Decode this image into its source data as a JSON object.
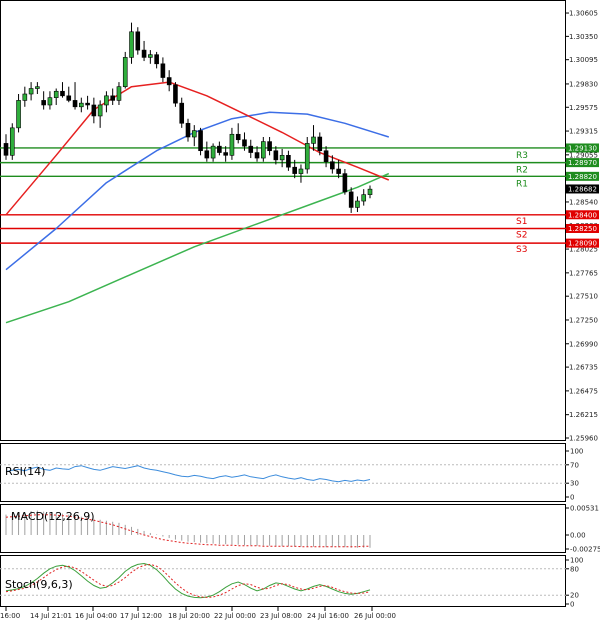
{
  "chart_data": {
    "type": "candlestick",
    "main": {
      "ylim": [
        1.2596,
        1.3066
      ],
      "price_ticks": [
        "1.30605",
        "1.30350",
        "1.30095",
        "1.29830",
        "1.29575",
        "1.29315",
        "1.29055",
        "1.28800",
        "1.28540",
        "1.28280",
        "1.28025",
        "1.27765",
        "1.27510",
        "1.27250",
        "1.26990",
        "1.26735",
        "1.26475",
        "1.26215",
        "1.25960"
      ],
      "x_labels": [
        "16:00",
        "14 Jul 21:01",
        "16 Jul 04:00",
        "17 Jul 12:00",
        "18 Jul 20:00",
        "22 Jul 00:00",
        "23 Jul 08:00",
        "24 Jul 16:00",
        "26 Jul 00:00"
      ],
      "candles": [
        {
          "o": 1.2918,
          "h": 1.2928,
          "l": 1.29,
          "c": 1.2905
        },
        {
          "o": 1.2905,
          "h": 1.294,
          "l": 1.29,
          "c": 1.2935
        },
        {
          "o": 1.2935,
          "h": 1.2972,
          "l": 1.293,
          "c": 1.2965
        },
        {
          "o": 1.2965,
          "h": 1.298,
          "l": 1.2958,
          "c": 1.2972
        },
        {
          "o": 1.2972,
          "h": 1.2985,
          "l": 1.2965,
          "c": 1.2978
        },
        {
          "o": 1.2978,
          "h": 1.2985,
          "l": 1.2972,
          "c": 1.298
        },
        {
          "o": 1.2965,
          "h": 1.2975,
          "l": 1.2955,
          "c": 1.296
        },
        {
          "o": 1.296,
          "h": 1.2975,
          "l": 1.2955,
          "c": 1.2968
        },
        {
          "o": 1.2968,
          "h": 1.2978,
          "l": 1.296,
          "c": 1.2975
        },
        {
          "o": 1.2975,
          "h": 1.2985,
          "l": 1.2968,
          "c": 1.297
        },
        {
          "o": 1.297,
          "h": 1.298,
          "l": 1.2963,
          "c": 1.2965
        },
        {
          "o": 1.2965,
          "h": 1.2985,
          "l": 1.2955,
          "c": 1.2958
        },
        {
          "o": 1.2958,
          "h": 1.2968,
          "l": 1.2952,
          "c": 1.2962
        },
        {
          "o": 1.2962,
          "h": 1.297,
          "l": 1.2955,
          "c": 1.296
        },
        {
          "o": 1.296,
          "h": 1.2968,
          "l": 1.294,
          "c": 1.2948
        },
        {
          "o": 1.2948,
          "h": 1.2965,
          "l": 1.2935,
          "c": 1.296
        },
        {
          "o": 1.296,
          "h": 1.2975,
          "l": 1.2952,
          "c": 1.297
        },
        {
          "o": 1.297,
          "h": 1.2978,
          "l": 1.296,
          "c": 1.2965
        },
        {
          "o": 1.2965,
          "h": 1.2985,
          "l": 1.296,
          "c": 1.298
        },
        {
          "o": 1.298,
          "h": 1.3018,
          "l": 1.2978,
          "c": 1.3012
        },
        {
          "o": 1.3012,
          "h": 1.305,
          "l": 1.3005,
          "c": 1.304
        },
        {
          "o": 1.304,
          "h": 1.3045,
          "l": 1.3015,
          "c": 1.302
        },
        {
          "o": 1.302,
          "h": 1.303,
          "l": 1.3008,
          "c": 1.3012
        },
        {
          "o": 1.3012,
          "h": 1.302,
          "l": 1.3005,
          "c": 1.3015
        },
        {
          "o": 1.3015,
          "h": 1.3018,
          "l": 1.3,
          "c": 1.3005
        },
        {
          "o": 1.3005,
          "h": 1.3012,
          "l": 1.2985,
          "c": 1.299
        },
        {
          "o": 1.299,
          "h": 1.2998,
          "l": 1.2975,
          "c": 1.2982
        },
        {
          "o": 1.2982,
          "h": 1.2985,
          "l": 1.2958,
          "c": 1.2962
        },
        {
          "o": 1.2962,
          "h": 1.2968,
          "l": 1.2935,
          "c": 1.294
        },
        {
          "o": 1.294,
          "h": 1.2945,
          "l": 1.292,
          "c": 1.2925
        },
        {
          "o": 1.2925,
          "h": 1.2938,
          "l": 1.2915,
          "c": 1.2932
        },
        {
          "o": 1.2932,
          "h": 1.2935,
          "l": 1.2905,
          "c": 1.291
        },
        {
          "o": 1.291,
          "h": 1.292,
          "l": 1.2898,
          "c": 1.2902
        },
        {
          "o": 1.2902,
          "h": 1.2918,
          "l": 1.2898,
          "c": 1.2915
        },
        {
          "o": 1.2915,
          "h": 1.292,
          "l": 1.2905,
          "c": 1.2908
        },
        {
          "o": 1.2908,
          "h": 1.2915,
          "l": 1.2898,
          "c": 1.2905
        },
        {
          "o": 1.2905,
          "h": 1.2935,
          "l": 1.29,
          "c": 1.2928
        },
        {
          "o": 1.2928,
          "h": 1.294,
          "l": 1.2918,
          "c": 1.2922
        },
        {
          "o": 1.2922,
          "h": 1.293,
          "l": 1.291,
          "c": 1.2915
        },
        {
          "o": 1.2915,
          "h": 1.2922,
          "l": 1.2902,
          "c": 1.2908
        },
        {
          "o": 1.2908,
          "h": 1.2915,
          "l": 1.2898,
          "c": 1.2902
        },
        {
          "o": 1.2902,
          "h": 1.2925,
          "l": 1.2898,
          "c": 1.292
        },
        {
          "o": 1.292,
          "h": 1.2925,
          "l": 1.2905,
          "c": 1.291
        },
        {
          "o": 1.291,
          "h": 1.2915,
          "l": 1.2895,
          "c": 1.29
        },
        {
          "o": 1.29,
          "h": 1.2912,
          "l": 1.2892,
          "c": 1.2905
        },
        {
          "o": 1.2905,
          "h": 1.291,
          "l": 1.2888,
          "c": 1.2892
        },
        {
          "o": 1.2892,
          "h": 1.29,
          "l": 1.288,
          "c": 1.2885
        },
        {
          "o": 1.2885,
          "h": 1.2895,
          "l": 1.2875,
          "c": 1.289
        },
        {
          "o": 1.289,
          "h": 1.2925,
          "l": 1.2885,
          "c": 1.2918
        },
        {
          "o": 1.2918,
          "h": 1.2938,
          "l": 1.291,
          "c": 1.2925
        },
        {
          "o": 1.2925,
          "h": 1.293,
          "l": 1.2905,
          "c": 1.291
        },
        {
          "o": 1.291,
          "h": 1.2915,
          "l": 1.2892,
          "c": 1.2898
        },
        {
          "o": 1.2898,
          "h": 1.2905,
          "l": 1.2885,
          "c": 1.289
        },
        {
          "o": 1.289,
          "h": 1.29,
          "l": 1.288,
          "c": 1.2885
        },
        {
          "o": 1.2885,
          "h": 1.289,
          "l": 1.2862,
          "c": 1.2865
        },
        {
          "o": 1.2865,
          "h": 1.287,
          "l": 1.2842,
          "c": 1.2848
        },
        {
          "o": 1.2848,
          "h": 1.286,
          "l": 1.2843,
          "c": 1.2855
        },
        {
          "o": 1.2855,
          "h": 1.2868,
          "l": 1.285,
          "c": 1.2862
        },
        {
          "o": 1.2862,
          "h": 1.2872,
          "l": 1.2858,
          "c": 1.2868
        }
      ],
      "ma_red": [
        [
          0,
          1.284
        ],
        [
          8,
          1.2905
        ],
        [
          14,
          1.2955
        ],
        [
          20,
          1.298
        ],
        [
          26,
          1.2985
        ],
        [
          32,
          1.297
        ],
        [
          38,
          1.295
        ],
        [
          44,
          1.293
        ],
        [
          50,
          1.2908
        ],
        [
          56,
          1.2892
        ],
        [
          61,
          1.2878
        ]
      ],
      "ma_blue": [
        [
          0,
          1.278
        ],
        [
          8,
          1.2825
        ],
        [
          16,
          1.2875
        ],
        [
          24,
          1.291
        ],
        [
          30,
          1.293
        ],
        [
          36,
          1.2945
        ],
        [
          42,
          1.2952
        ],
        [
          48,
          1.295
        ],
        [
          54,
          1.294
        ],
        [
          61,
          1.2925
        ]
      ],
      "ma_green": [
        [
          0,
          1.2722
        ],
        [
          10,
          1.2745
        ],
        [
          20,
          1.2775
        ],
        [
          30,
          1.2805
        ],
        [
          40,
          1.283
        ],
        [
          50,
          1.2855
        ],
        [
          56,
          1.287
        ],
        [
          61,
          1.2885
        ]
      ],
      "levels": [
        {
          "name": "R3",
          "price": "1.29130",
          "color": "#1e8c1e"
        },
        {
          "name": "R2",
          "price": "1.28970",
          "color": "#1e8c1e"
        },
        {
          "name": "R1",
          "price": "1.28820",
          "color": "#1e8c1e"
        },
        {
          "name": "S1",
          "price": "1.28400",
          "color": "#e00000"
        },
        {
          "name": "S2",
          "price": "1.28250",
          "color": "#e00000"
        },
        {
          "name": "S3",
          "price": "1.28090",
          "color": "#e00000"
        }
      ],
      "current_price": "1.28682"
    },
    "rsi": {
      "label": "RSI(14)",
      "ticks": [
        "100",
        "70",
        "30",
        "0"
      ],
      "values": [
        55,
        58,
        60,
        57,
        62,
        65,
        60,
        58,
        63,
        61,
        60,
        66,
        68,
        64,
        60,
        58,
        62,
        66,
        64,
        62,
        65,
        68,
        63,
        60,
        58,
        55,
        52,
        48,
        45,
        44,
        47,
        45,
        42,
        40,
        44,
        46,
        43,
        45,
        48,
        44,
        42,
        40,
        45,
        48,
        44,
        41,
        39,
        42,
        38,
        36,
        40,
        38,
        35,
        33,
        36,
        34,
        37,
        35,
        38
      ]
    },
    "macd": {
      "label": "MACD(12,26,9)",
      "ticks": [
        "0.00531",
        "0.00",
        "-0.00275"
      ],
      "histogram": [
        0.004,
        0.0042,
        0.0043,
        0.0045,
        0.0047,
        0.0048,
        0.0046,
        0.0044,
        0.0043,
        0.0042,
        0.004,
        0.0038,
        0.0036,
        0.0034,
        0.0032,
        0.003,
        0.0028,
        0.0026,
        0.0024,
        0.002,
        0.0016,
        0.0012,
        0.0008,
        0.0004,
        0.0001,
        -0.0003,
        -0.0006,
        -0.0009,
        -0.0011,
        -0.0013,
        -0.0014,
        -0.0015,
        -0.0016,
        -0.0017,
        -0.0018,
        -0.0018,
        -0.0019,
        -0.0019,
        -0.002,
        -0.002,
        -0.0021,
        -0.0021,
        -0.0021,
        -0.0022,
        -0.0022,
        -0.0022,
        -0.0023,
        -0.0023,
        -0.0023,
        -0.0023,
        -0.0024,
        -0.0024,
        -0.0024,
        -0.0024,
        -0.0024,
        -0.0025,
        -0.0025,
        -0.0025,
        -0.0025
      ],
      "signal": [
        0.0035,
        0.0036,
        0.0037,
        0.0038,
        0.0039,
        0.004,
        0.004,
        0.004,
        0.0039,
        0.0038,
        0.0037,
        0.0035,
        0.0033,
        0.0031,
        0.0029,
        0.0026,
        0.0023,
        0.002,
        0.0016,
        0.0012,
        0.0008,
        0.0004,
        0.0,
        -0.0003,
        -0.0006,
        -0.0009,
        -0.0011,
        -0.0013,
        -0.0015,
        -0.0016,
        -0.0017,
        -0.0018,
        -0.0019,
        -0.0019,
        -0.002,
        -0.002,
        -0.002,
        -0.0021,
        -0.0021,
        -0.0021,
        -0.0021,
        -0.0022,
        -0.0022,
        -0.0022,
        -0.0022,
        -0.0022,
        -0.0022,
        -0.0023,
        -0.0023,
        -0.0023,
        -0.0023,
        -0.0023,
        -0.0023,
        -0.0023,
        -0.0023,
        -0.0023,
        -0.0023,
        -0.0022,
        -0.0022
      ]
    },
    "stoch": {
      "label": "Stoch(9,6,3)",
      "ticks": [
        "100",
        "80",
        "20",
        "0"
      ],
      "main": [
        30,
        32,
        35,
        40,
        48,
        58,
        70,
        80,
        86,
        88,
        84,
        76,
        64,
        52,
        42,
        36,
        38,
        48,
        60,
        74,
        84,
        90,
        92,
        88,
        78,
        64,
        48,
        34,
        24,
        18,
        15,
        14,
        16,
        20,
        28,
        38,
        46,
        50,
        44,
        36,
        30,
        34,
        42,
        48,
        46,
        40,
        34,
        30,
        34,
        40,
        44,
        40,
        34,
        28,
        24,
        22,
        24,
        28,
        32
      ],
      "signal": [
        28,
        30,
        33,
        36,
        42,
        50,
        60,
        70,
        78,
        84,
        86,
        82,
        74,
        64,
        54,
        45,
        40,
        42,
        50,
        60,
        72,
        82,
        88,
        90,
        86,
        76,
        62,
        48,
        36,
        26,
        20,
        16,
        15,
        16,
        20,
        26,
        34,
        42,
        46,
        44,
        38,
        34,
        36,
        42,
        46,
        44,
        38,
        34,
        32,
        36,
        40,
        42,
        38,
        32,
        28,
        25,
        24,
        25,
        28
      ]
    }
  }
}
